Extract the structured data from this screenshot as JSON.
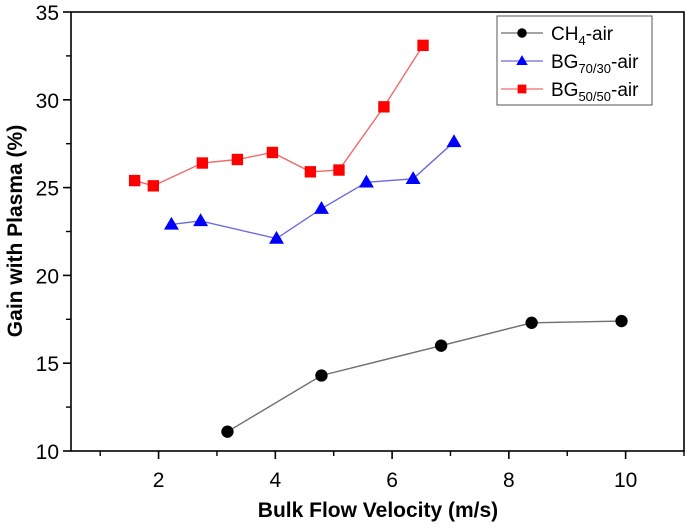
{
  "chart_data": {
    "type": "line",
    "title": "",
    "xlabel": "Bulk Flow Velocity (m/s)",
    "ylabel": "Gain with Plasma (%)",
    "xlim": [
      0.5,
      11
    ],
    "ylim": [
      10,
      35
    ],
    "xticks": [
      2,
      4,
      6,
      8,
      10
    ],
    "xminor": [
      1,
      3,
      5,
      7,
      9,
      11
    ],
    "yticks": [
      10,
      15,
      20,
      25,
      30,
      35
    ],
    "yminor": [
      12.5,
      17.5,
      22.5,
      27.5,
      32.5
    ],
    "grid": false,
    "legend_position": "top-right",
    "series": [
      {
        "name": "CH4-air",
        "label_main": "CH",
        "label_sub": "4",
        "label_suffix": "-air",
        "marker": "circle",
        "color": "#000000",
        "line_color": "#6e6e6e",
        "x": [
          3.18,
          4.79,
          6.84,
          8.39,
          9.93
        ],
        "y": [
          11.1,
          14.3,
          16.0,
          17.3,
          17.4
        ]
      },
      {
        "name": "BG70/30-air",
        "label_main": "BG",
        "label_sub": "70/30",
        "label_suffix": "-air",
        "marker": "triangle",
        "color": "#0000ff",
        "line_color": "#6a6ae0",
        "x": [
          2.22,
          2.72,
          4.02,
          4.79,
          5.56,
          6.36,
          7.06
        ],
        "y": [
          22.9,
          23.1,
          22.1,
          23.8,
          25.3,
          25.5,
          27.6
        ]
      },
      {
        "name": "BG50/50-air",
        "label_main": "BG",
        "label_sub": "50/50",
        "label_suffix": "-air",
        "marker": "square",
        "color": "#ff0000",
        "line_color": "#f06a6a",
        "x": [
          1.59,
          1.91,
          2.75,
          3.35,
          3.95,
          4.6,
          5.09,
          5.86,
          6.53
        ],
        "y": [
          25.4,
          25.1,
          26.4,
          26.6,
          27.0,
          25.9,
          26.0,
          29.6,
          33.1
        ]
      }
    ]
  }
}
